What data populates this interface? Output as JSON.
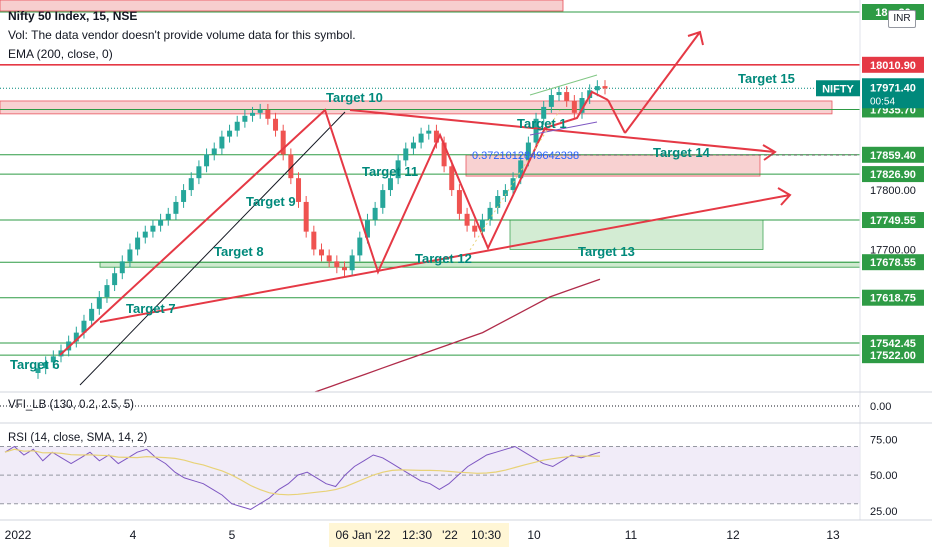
{
  "header": {
    "symbol": "Nifty 50 Index, 15, NSE",
    "volume_note": "Vol: The data vendor doesn't provide volume data for this symbol.",
    "ema": "EMA (200, close, 0)",
    "currency_badge": "INR"
  },
  "colors": {
    "level_line": "#2e9b45",
    "level_label_bg": "#2e9b45",
    "red": "#e53945",
    "teal": "#00897b",
    "zone_red": "#f7c9c9",
    "zone_green": "#cfeacf",
    "ema": "#b02c4a",
    "rsi": "#7e57c2",
    "rsi_ma": "#e8d277",
    "grid_text": "#131722"
  },
  "chart_data": {
    "type": "line",
    "title": "Nifty 50 Index, 15, NSE",
    "y_axis": {
      "ticks": [
        17800,
        17700
      ],
      "ylim": [
        17460,
        18120
      ]
    },
    "price_levels": [
      18120.2,
      18010.9,
      17935.7,
      17859.4,
      17826.9,
      17749.55,
      17678.55,
      17618.75,
      17542.45,
      17522.0
    ],
    "price_level_labels": [
      "18…20",
      "18010.90",
      "17935.70",
      "17859.40",
      "17826.90",
      "17749.55",
      "17678.55",
      "17618.75",
      "17542.45",
      "17522.00"
    ],
    "current_price": {
      "symbol": "NIFTY",
      "value": "17971.40",
      "countdown": "00:54"
    },
    "fib_annotation": "0.3721012849642338",
    "targets": [
      "Target 6",
      "Target 7",
      "Target 8",
      "Target 9",
      "Target 10",
      "Target 11",
      "Target 12",
      "Target 13",
      "Target 14",
      "Target 15"
    ],
    "x_axis_labels": [
      "2022",
      "4",
      "5",
      "06 Jan '22",
      "12:30",
      "'22",
      "10:30",
      "10",
      "11",
      "12",
      "13"
    ],
    "price_series_bars": [
      17500,
      17510,
      17520,
      17530,
      17545,
      17560,
      17580,
      17600,
      17620,
      17640,
      17660,
      17680,
      17700,
      17720,
      17730,
      17740,
      17750,
      17760,
      17780,
      17800,
      17820,
      17840,
      17860,
      17870,
      17890,
      17900,
      17915,
      17925,
      17930,
      17935,
      17920,
      17900,
      17860,
      17820,
      17780,
      17730,
      17700,
      17690,
      17680,
      17670,
      17665,
      17690,
      17720,
      17750,
      17770,
      17800,
      17820,
      17850,
      17870,
      17880,
      17895,
      17900,
      17880,
      17840,
      17800,
      17760,
      17740,
      17730,
      17750,
      17770,
      17790,
      17800,
      17820,
      17850,
      17880,
      17920,
      17940,
      17960,
      17965,
      17950,
      17930,
      17955,
      17968,
      17975,
      17971
    ],
    "ema_series": [
      17460,
      17470,
      17480,
      17490,
      17500,
      17510,
      17520,
      17530,
      17540,
      17550,
      17560,
      17575,
      17590,
      17605,
      17620,
      17630,
      17640,
      17650
    ],
    "rsi_panel": {
      "title": "RSI (14, close, SMA, 14, 2)",
      "ticks": [
        75.0,
        50.0,
        25.0
      ],
      "tick_labels": [
        "75.00",
        "50.00",
        "25.00"
      ],
      "ylim": [
        20,
        85
      ],
      "band": [
        30,
        70
      ],
      "rsi_values": [
        66,
        70,
        64,
        68,
        60,
        66,
        62,
        58,
        62,
        66,
        60,
        64,
        58,
        62,
        66,
        68,
        62,
        58,
        52,
        48,
        46,
        44,
        40,
        36,
        30,
        28,
        26,
        30,
        34,
        40,
        44,
        50,
        52,
        48,
        44,
        42,
        50,
        56,
        60,
        64,
        62,
        58,
        54,
        50,
        46,
        44,
        40,
        44,
        50,
        56,
        60,
        64,
        66,
        68,
        70,
        66,
        62,
        58,
        56,
        60,
        64,
        62,
        64,
        66
      ]
    },
    "vfi_panel": {
      "title": "VFI_LB (130, 0.2, 2.5, 5)",
      "tick_label": "0.00"
    }
  }
}
